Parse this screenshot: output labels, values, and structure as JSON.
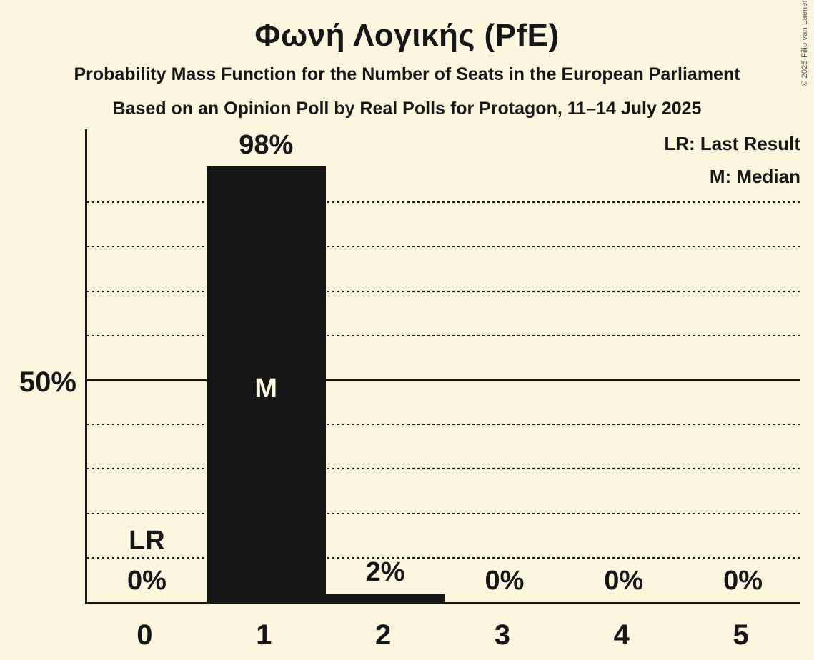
{
  "title": "Φωνή Λογικής (PfE)",
  "subtitle_line1": "Probability Mass Function for the Number of Seats in the European Parliament",
  "subtitle_line2": "Based on an Opinion Poll by Real Polls for Protagon, 11–14 July 2025",
  "copyright": "© 2025 Filip van Laenen",
  "legend": {
    "last_result": "LR: Last Result",
    "median": "M: Median"
  },
  "colors": {
    "background": "#fbf6dd",
    "ink": "#161616",
    "bar": "#161616",
    "label_on_bar": "#fbf6dd",
    "copyright": "#555555"
  },
  "chart_data": {
    "type": "bar",
    "title": "Φωνή Λογικής (PfE)",
    "xlabel": "",
    "ylabel": "",
    "categories": [
      "0",
      "1",
      "2",
      "3",
      "4",
      "5"
    ],
    "values_pct": [
      0,
      98,
      2,
      0,
      0,
      0
    ],
    "value_labels": [
      "0%",
      "98%",
      "2%",
      "0%",
      "0%",
      "0%"
    ],
    "ylim": [
      0,
      100
    ],
    "y_axis_tick": {
      "pct": 50,
      "label": "50%"
    },
    "gridlines": {
      "dotted_pct": [
        10,
        20,
        30,
        40,
        60,
        70,
        80,
        90
      ],
      "solid_pct": 50
    },
    "legend_position": "top-right",
    "annotations": {
      "last_result": {
        "category": "0",
        "label": "LR"
      },
      "median": {
        "category": "1",
        "label": "M"
      }
    }
  }
}
